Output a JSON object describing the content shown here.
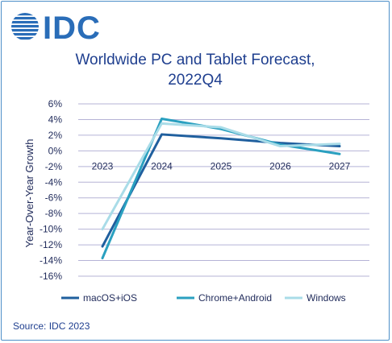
{
  "brand": {
    "logo_text": "IDC",
    "logo_color": "#2a6db8"
  },
  "source": "Source: IDC 2023",
  "colors": {
    "title": "#1f3f8f",
    "grid": "#b5b3d6",
    "axis_text": "#1f2a5a",
    "border": "#4d8fc8"
  },
  "chart_data": {
    "type": "line",
    "title_lines": [
      "Worldwide PC and Tablet Forecast,",
      "2022Q4"
    ],
    "ylabel": "Year-Over-Year Growth",
    "xlabel": "",
    "x": [
      "2023",
      "2024",
      "2025",
      "2026",
      "2027"
    ],
    "ylim": [
      -16,
      6
    ],
    "yticks": [
      "6%",
      "4%",
      "2%",
      "0%",
      "-2%",
      "-4%",
      "-6%",
      "-8%",
      "-10%",
      "-12%",
      "-14%",
      "-16%"
    ],
    "grid": true,
    "legend_position": "bottom",
    "series": [
      {
        "name": "macOS+iOS",
        "color": "#1f5f9e",
        "values": [
          -12.2,
          2.1,
          1.6,
          1.0,
          0.6
        ]
      },
      {
        "name": "Chrome+Android",
        "color": "#2aa0c0",
        "values": [
          -13.7,
          4.1,
          2.8,
          0.8,
          -0.4
        ]
      },
      {
        "name": "Windows",
        "color": "#a9dce8",
        "values": [
          -10.0,
          3.5,
          3.0,
          0.6,
          0.9
        ]
      }
    ]
  }
}
